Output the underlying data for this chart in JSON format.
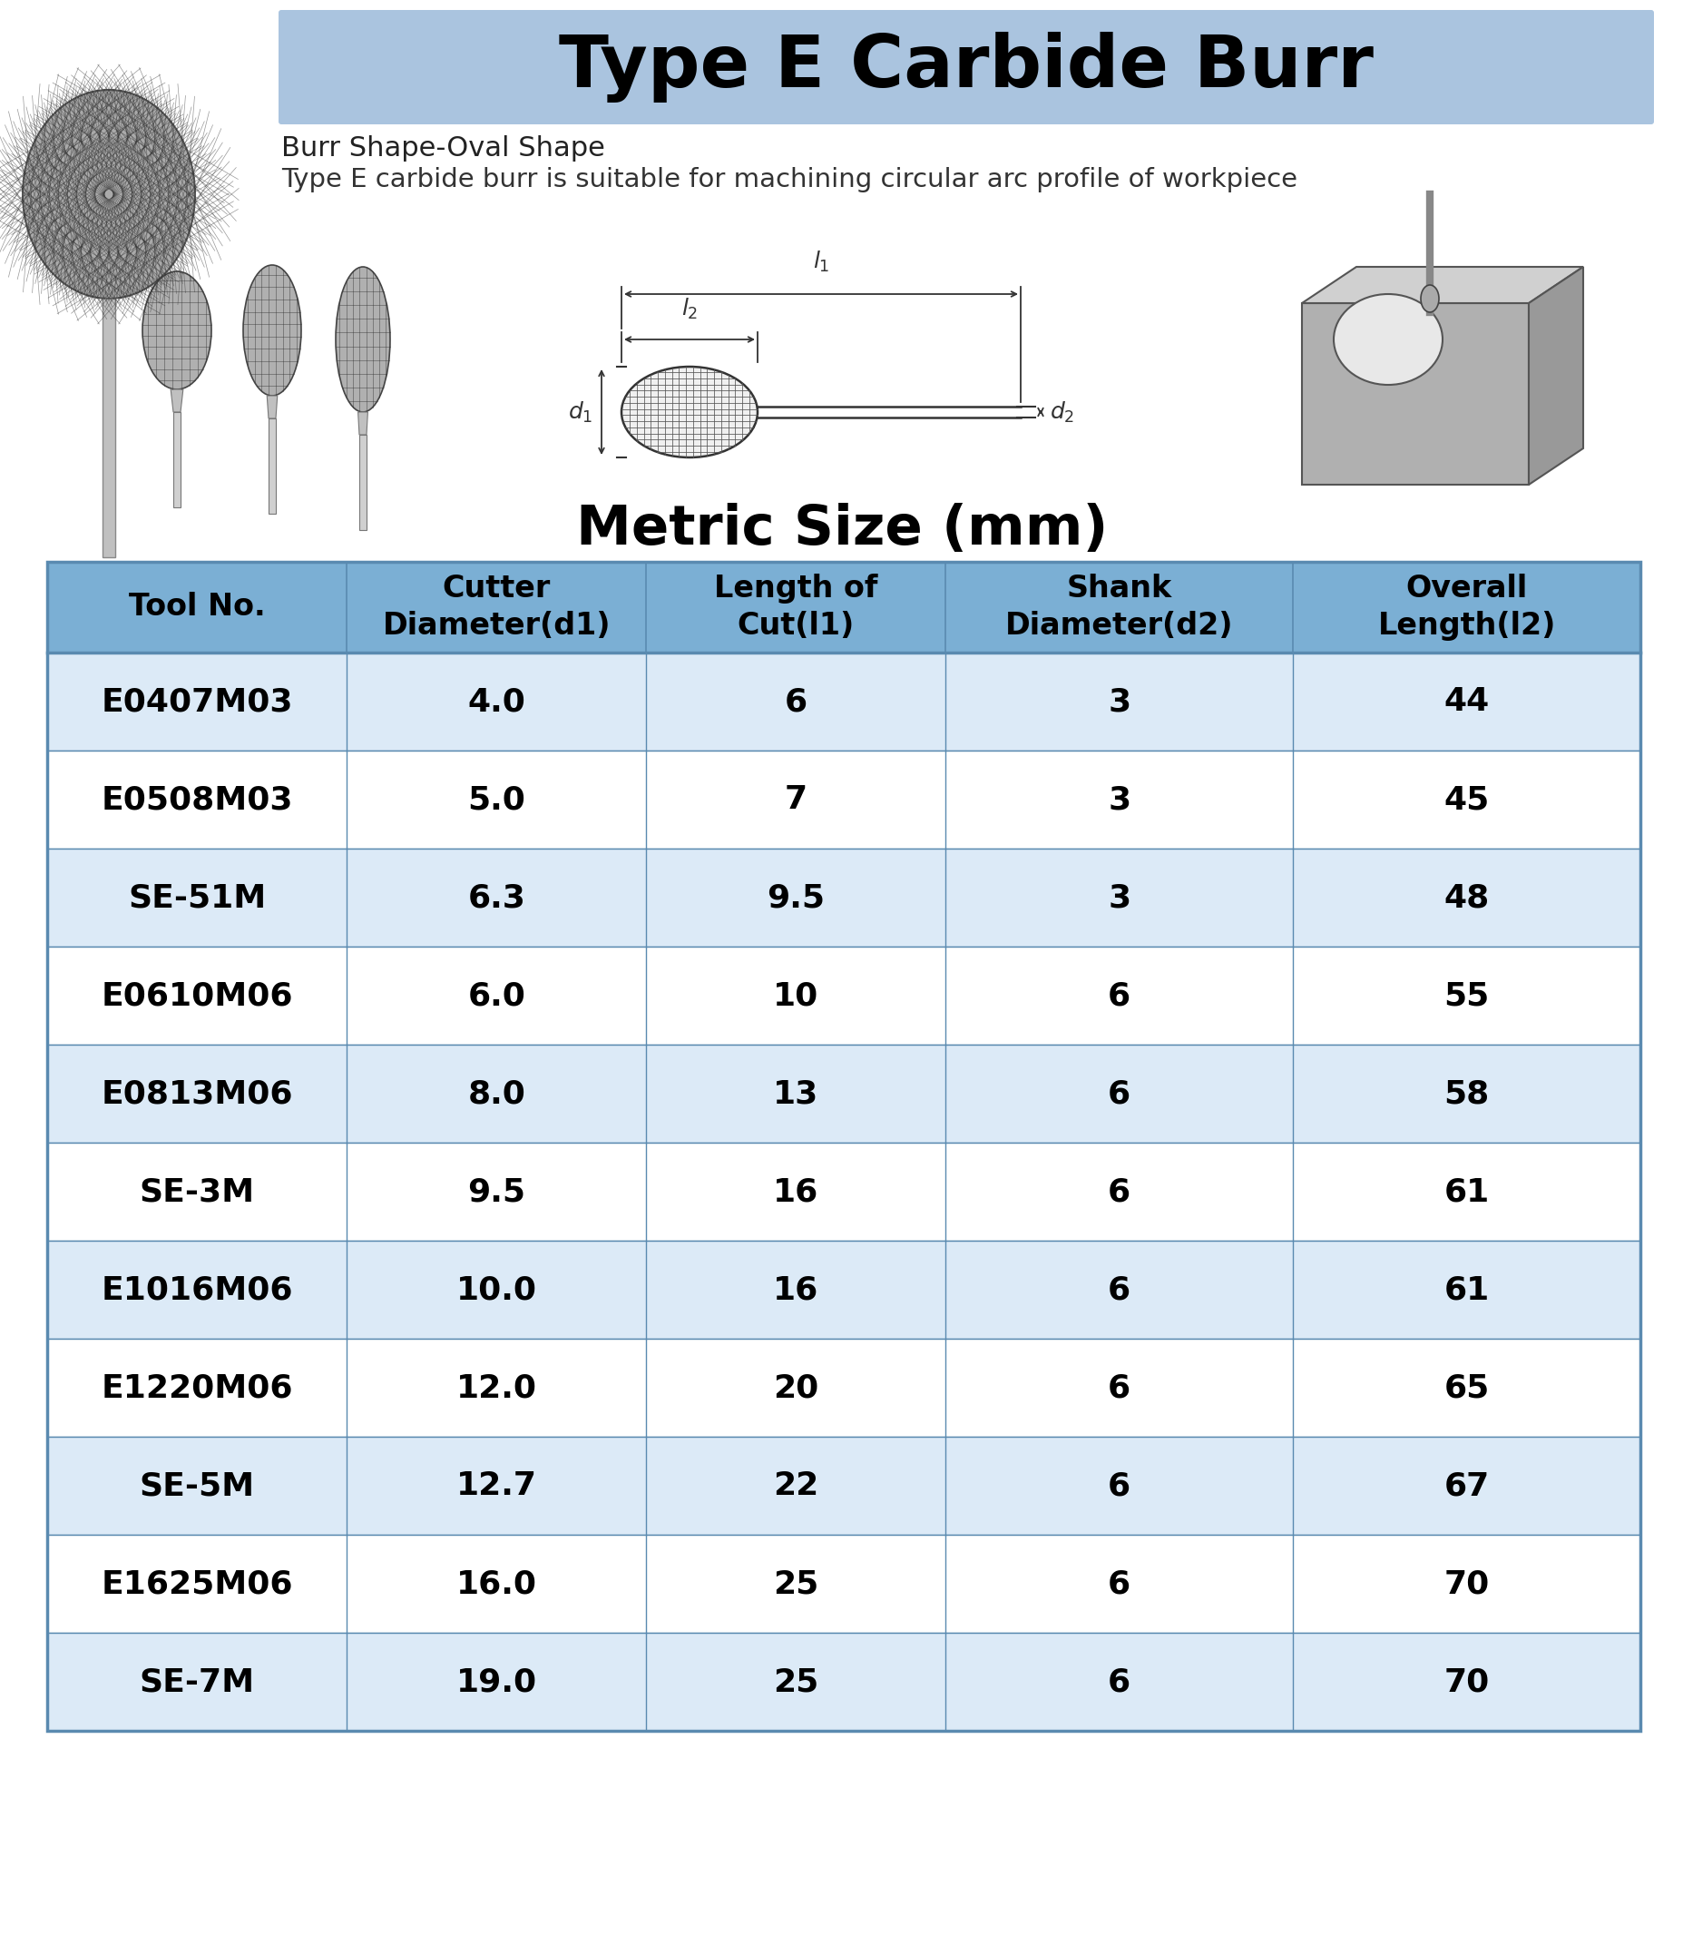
{
  "title": "Type E Carbide Burr",
  "title_bg_color": "#aac4df",
  "subtitle1": "Burr Shape-Oval Shape",
  "subtitle2": "Type E carbide burr is suitable for machining circular arc profile of workpiece",
  "metric_title": "Metric Size (mm)",
  "col_headers": [
    "Tool No.",
    "Cutter\nDiameter(d1)",
    "Length of\nCut(l1)",
    "Shank\nDiameter(d2)",
    "Overall\nLength(l2)"
  ],
  "rows": [
    [
      "E0407M03",
      "4.0",
      "6",
      "3",
      "44"
    ],
    [
      "E0508M03",
      "5.0",
      "7",
      "3",
      "45"
    ],
    [
      "SE-51M",
      "6.3",
      "9.5",
      "3",
      "48"
    ],
    [
      "E0610M06",
      "6.0",
      "10",
      "6",
      "55"
    ],
    [
      "E0813M06",
      "8.0",
      "13",
      "6",
      "58"
    ],
    [
      "SE-3M",
      "9.5",
      "16",
      "6",
      "61"
    ],
    [
      "E1016M06",
      "10.0",
      "16",
      "6",
      "61"
    ],
    [
      "E1220M06",
      "12.0",
      "20",
      "6",
      "65"
    ],
    [
      "SE-5M",
      "12.7",
      "22",
      "6",
      "67"
    ],
    [
      "E1625M06",
      "16.0",
      "25",
      "6",
      "70"
    ],
    [
      "SE-7M",
      "19.0",
      "25",
      "6",
      "70"
    ]
  ],
  "header_bg": "#7bafd4",
  "row_bg_even": "#ffffff",
  "row_bg_odd": "#dceaf7",
  "border_color": "#5a8ab0",
  "text_color": "#000000",
  "header_text_color": "#000000",
  "bg_color": "#ffffff"
}
